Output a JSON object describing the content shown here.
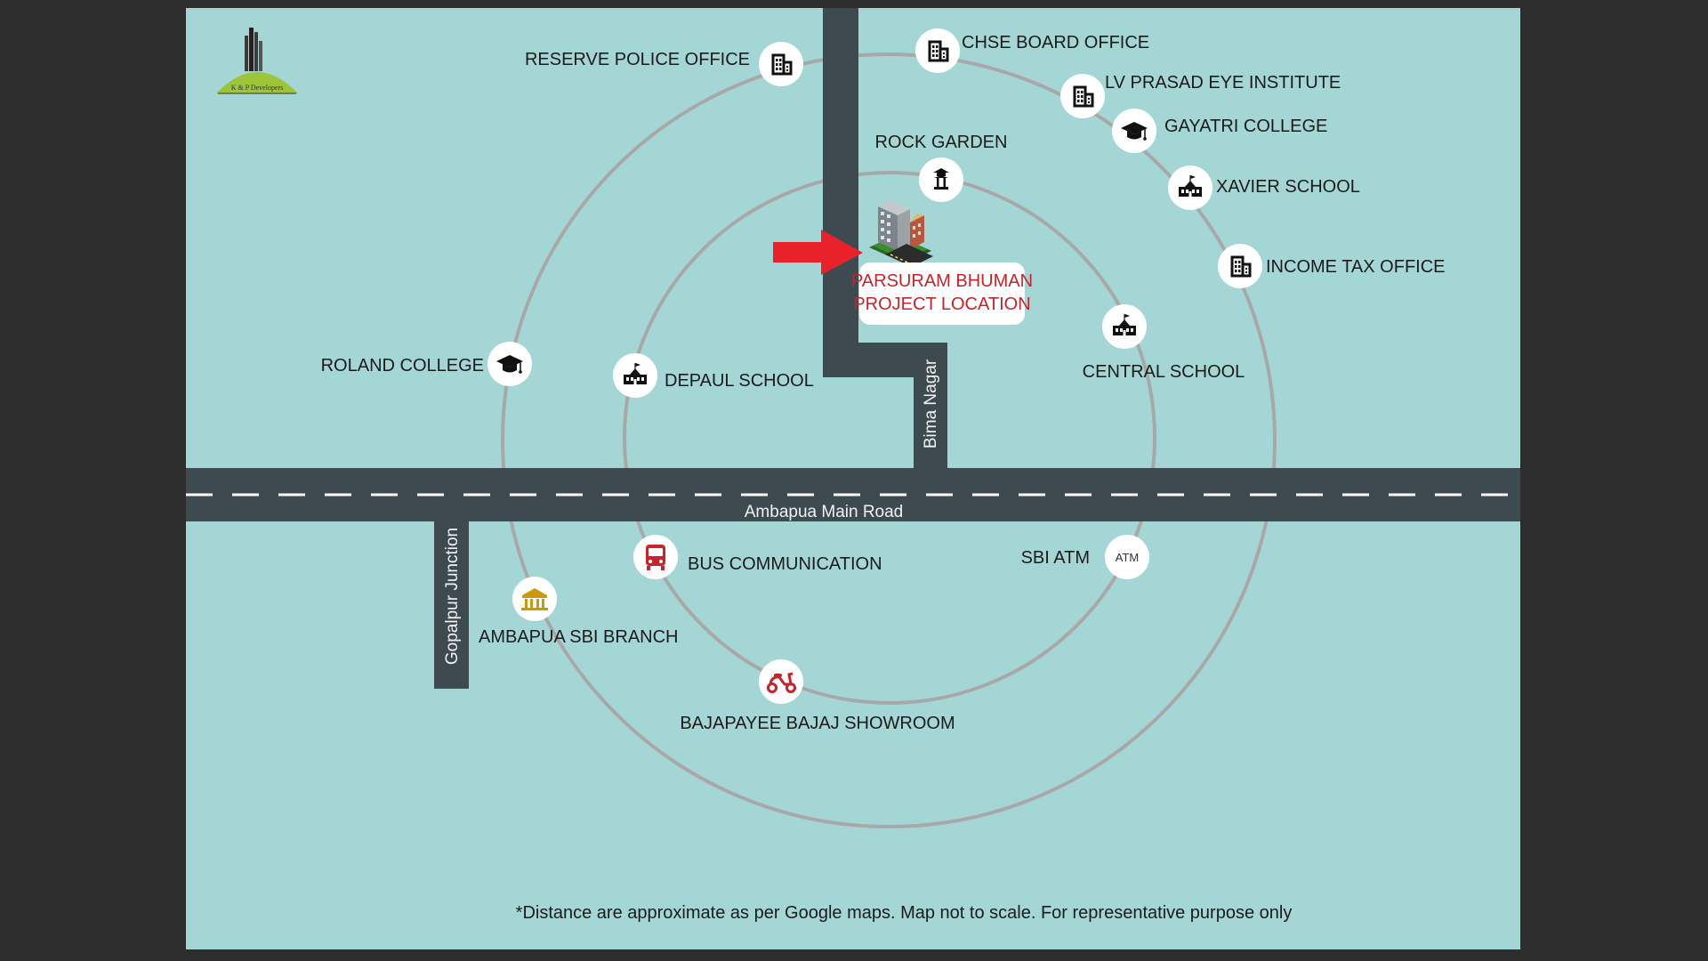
{
  "logo": {
    "company": "K & P Developers"
  },
  "project": {
    "line1": "PARSURAM BHUMAN",
    "line2": "PROJECT LOCATION"
  },
  "roads": {
    "main": "Ambapua Main Road",
    "bima": "Bima Nagar",
    "gopalpur": "Gopalpur Junction"
  },
  "landmarks": {
    "reserve_police_office": "RESERVE POLICE OFFICE",
    "chse_board_office": "CHSE BOARD OFFICE",
    "lv_prasad_eye_institute": "LV PRASAD EYE INSTITUTE",
    "gayatri_college": "GAYATRI COLLEGE",
    "xavier_school": "XAVIER SCHOOL",
    "income_tax_office": "INCOME TAX OFFICE",
    "rock_garden": "ROCK GARDEN",
    "roland_college": "ROLAND COLLEGE",
    "depaul_school": "DEPAUL SCHOOL",
    "central_school": "CENTRAL SCHOOL",
    "sbi_atm": "SBI ATM",
    "bus_communication": "BUS COMMUNICATION",
    "ambapua_sbi_branch": "AMBAPUA SBI BRANCH",
    "bajapayee_bajaj_showroom": "BAJAPAYEE BAJAJ SHOWROOM"
  },
  "icon_text": {
    "atm": "ATM"
  },
  "icons": {
    "office": "office-building-icon",
    "college": "graduation-cap-icon",
    "school": "school-building-icon",
    "garden": "pagoda-icon",
    "atm": "atm-icon",
    "bus": "bus-icon",
    "bank": "bank-icon",
    "scooter": "scooter-icon"
  },
  "colors": {
    "map_background": "#a5d6d6",
    "road": "#3d4a50",
    "ring": "#a8a8a8",
    "highlight_red": "#c4242a",
    "arrow_red": "#e8212a",
    "frame": "#2d2d2d"
  },
  "disclaimer": "*Distance are approximate as per Google maps. Map not to scale. For representative purpose only"
}
